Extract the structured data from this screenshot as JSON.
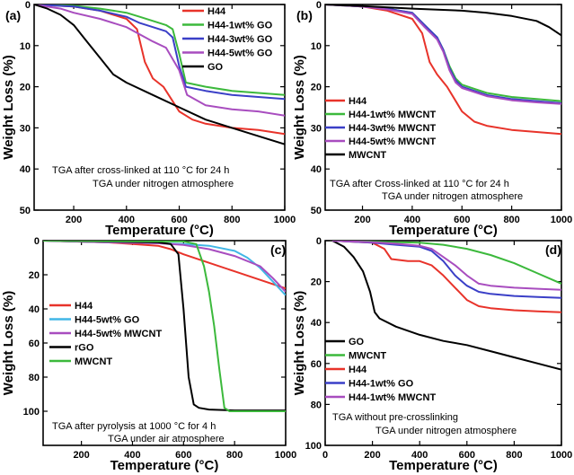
{
  "chart_data": [
    {
      "type": "line",
      "panel_label": "(a)",
      "xlabel": "Temperature (°C)",
      "ylabel": "Weight Loss (%)",
      "xlim": [
        50,
        1000
      ],
      "ylim": [
        0,
        50
      ],
      "y_inverted": true,
      "xticks": [
        200,
        400,
        600,
        800,
        1000
      ],
      "yticks": [
        0,
        10,
        20,
        30,
        40,
        50
      ],
      "legend_position": "top-right",
      "annotations": [
        "TGA after cross-linked  at 110 °C for 24 h",
        "TGA under nitrogen atmosphere"
      ],
      "series": [
        {
          "name": "H44",
          "color": "#e8332a",
          "x": [
            50,
            200,
            300,
            400,
            440,
            470,
            500,
            540,
            570,
            600,
            650,
            700,
            800,
            900,
            1000
          ],
          "y": [
            0,
            0.5,
            1.5,
            3.5,
            6,
            14,
            18,
            20,
            23,
            26,
            28,
            29,
            30,
            30.5,
            31.5
          ]
        },
        {
          "name": "H44-1wt% GO",
          "color": "#3cb93c",
          "x": [
            50,
            200,
            300,
            400,
            450,
            500,
            550,
            575,
            600,
            625,
            700,
            800,
            900,
            1000
          ],
          "y": [
            0,
            0.3,
            1,
            2,
            3,
            4,
            5,
            6,
            12,
            19,
            20,
            21,
            21.5,
            22
          ]
        },
        {
          "name": "H44-3wt% GO",
          "color": "#3a3fc7",
          "x": [
            50,
            200,
            300,
            400,
            450,
            500,
            550,
            575,
            600,
            625,
            700,
            800,
            900,
            1000
          ],
          "y": [
            0,
            0.5,
            1.5,
            3,
            4.5,
            5.5,
            6.5,
            8,
            15,
            20,
            21,
            22,
            22.5,
            23
          ]
        },
        {
          "name": "H44-5wt% GO",
          "color": "#a84dbf",
          "x": [
            50,
            150,
            200,
            300,
            400,
            500,
            550,
            600,
            630,
            700,
            800,
            900,
            1000
          ],
          "y": [
            0,
            1,
            2,
            3.5,
            5.5,
            9,
            10.5,
            16,
            22,
            24.5,
            25.5,
            26,
            27
          ]
        },
        {
          "name": "GO",
          "color": "#000000",
          "x": [
            50,
            100,
            150,
            200,
            250,
            300,
            350,
            400,
            500,
            600,
            700,
            800,
            900,
            1000
          ],
          "y": [
            0,
            1,
            2.5,
            5,
            9,
            13,
            17,
            19,
            22,
            25,
            28,
            30,
            32,
            34
          ]
        }
      ]
    },
    {
      "type": "line",
      "panel_label": "(b)",
      "xlabel": "Temperature (°C)",
      "ylabel": "Weight Loss (%)",
      "xlim": [
        50,
        1000
      ],
      "ylim": [
        0,
        50
      ],
      "y_inverted": true,
      "xticks": [
        200,
        400,
        600,
        800,
        1000
      ],
      "yticks": [
        0,
        10,
        20,
        30,
        40,
        50
      ],
      "legend_position": "middle-left",
      "annotations": [
        "TGA after Cross-linked  at 110 °C for 24 h",
        "TGA under nitrogen atmosphere"
      ],
      "series": [
        {
          "name": "H44",
          "color": "#e8332a",
          "x": [
            50,
            200,
            300,
            400,
            440,
            470,
            500,
            540,
            570,
            600,
            650,
            700,
            800,
            900,
            1000
          ],
          "y": [
            0,
            0.5,
            1.5,
            3.5,
            7,
            14,
            17,
            20,
            23,
            26,
            28.5,
            29.5,
            30.5,
            31,
            31.5
          ]
        },
        {
          "name": "H44-1wt% MWCNT",
          "color": "#3cb93c",
          "x": [
            50,
            200,
            300,
            400,
            450,
            500,
            525,
            550,
            575,
            600,
            650,
            700,
            800,
            900,
            1000
          ],
          "y": [
            0,
            0.5,
            1,
            2,
            5,
            8,
            11,
            15,
            18,
            19.5,
            20.5,
            21.5,
            22.5,
            23,
            23.5
          ]
        },
        {
          "name": "H44-3wt% MWCNT",
          "color": "#3a3fc7",
          "x": [
            50,
            200,
            300,
            400,
            450,
            500,
            525,
            550,
            575,
            600,
            650,
            700,
            800,
            900,
            1000
          ],
          "y": [
            0,
            0.5,
            1,
            2,
            5,
            8,
            11,
            15.5,
            18.5,
            20,
            21,
            22,
            23,
            23.5,
            24
          ]
        },
        {
          "name": "H44-5wt% MWCNT",
          "color": "#a84dbf",
          "x": [
            50,
            200,
            300,
            400,
            450,
            500,
            525,
            550,
            575,
            600,
            650,
            700,
            800,
            900,
            1000
          ],
          "y": [
            0,
            0.5,
            1.2,
            2.3,
            5.5,
            8.5,
            11.5,
            16,
            19,
            20.3,
            21.3,
            22.3,
            23.3,
            23.8,
            24.2
          ]
        },
        {
          "name": "MWCNT",
          "color": "#000000",
          "x": [
            50,
            200,
            400,
            600,
            700,
            800,
            900,
            950,
            1000
          ],
          "y": [
            0,
            0.4,
            1,
            1.5,
            2,
            2.8,
            4,
            5.5,
            7.5
          ]
        }
      ]
    },
    {
      "type": "line",
      "panel_label": "(c)",
      "xlabel": "Temperature (°C)",
      "ylabel": "Weight Loss (%)",
      "xlim": [
        50,
        1000
      ],
      "ylim": [
        0,
        120
      ],
      "y_inverted": true,
      "xticks": [
        200,
        400,
        600,
        800,
        1000
      ],
      "yticks": [
        0,
        20,
        40,
        60,
        80,
        100
      ],
      "legend_position": "middle-left",
      "annotations": [
        "TGA after pyrolysis  at 1000 °C for 4 h",
        "TGA under air atmosphere"
      ],
      "series": [
        {
          "name": "H44",
          "color": "#e8332a",
          "x": [
            50,
            300,
            400,
            500,
            550,
            600,
            700,
            800,
            900,
            1000
          ],
          "y": [
            0,
            1,
            2,
            3,
            5,
            8,
            13,
            18,
            23,
            28
          ]
        },
        {
          "name": "H44-5wt% GO",
          "color": "#41b6e6",
          "x": [
            50,
            300,
            500,
            600,
            700,
            800,
            850,
            900,
            950,
            1000
          ],
          "y": [
            0,
            1,
            1.5,
            2,
            3,
            6,
            10,
            16,
            24,
            32
          ]
        },
        {
          "name": "H44-5wt% MWCNT",
          "color": "#a84dbf",
          "x": [
            50,
            300,
            500,
            600,
            700,
            800,
            900,
            950,
            1000
          ],
          "y": [
            0,
            1,
            1.5,
            2.5,
            5,
            9,
            15,
            22,
            30
          ]
        },
        {
          "name": "rGO",
          "color": "#000000",
          "x": [
            50,
            300,
            500,
            550,
            580,
            600,
            620,
            640,
            660,
            700,
            800,
            1000
          ],
          "y": [
            0,
            0.5,
            1,
            2,
            8,
            40,
            80,
            96,
            98,
            99,
            99.5,
            99.5
          ]
        },
        {
          "name": "MWCNT",
          "color": "#3cb93c",
          "x": [
            50,
            300,
            600,
            650,
            680,
            700,
            720,
            740,
            760,
            780,
            1000
          ],
          "y": [
            0,
            0.3,
            0.5,
            2,
            15,
            30,
            50,
            75,
            98,
            100,
            100
          ]
        }
      ]
    },
    {
      "type": "line",
      "panel_label": "(d)",
      "xlabel": "Temperature (°C)",
      "ylabel": "Weight Loss (%)",
      "xlim": [
        0,
        1000
      ],
      "ylim": [
        0,
        100
      ],
      "y_inverted": true,
      "xticks": [
        0,
        200,
        400,
        600,
        800,
        1000
      ],
      "yticks": [
        0,
        20,
        40,
        60,
        80,
        100
      ],
      "legend_position": "middle-left",
      "annotations": [
        "TGA without pre-crosslinking",
        "TGA under nitrogen atmosphere"
      ],
      "series": [
        {
          "name": "GO",
          "color": "#000000",
          "x": [
            30,
            80,
            120,
            160,
            190,
            210,
            230,
            300,
            400,
            500,
            600,
            700,
            800,
            900,
            1000
          ],
          "y": [
            0,
            3,
            8,
            15,
            25,
            35,
            38,
            42,
            46,
            49,
            51,
            54,
            57,
            60,
            63
          ]
        },
        {
          "name": "MWCNT",
          "color": "#3cb93c",
          "x": [
            30,
            200,
            400,
            500,
            600,
            700,
            800,
            900,
            1000
          ],
          "y": [
            0,
            0.5,
            1,
            2,
            4,
            7,
            11,
            16,
            21
          ]
        },
        {
          "name": "H44",
          "color": "#e8332a",
          "x": [
            30,
            200,
            250,
            280,
            350,
            400,
            450,
            500,
            550,
            600,
            650,
            700,
            800,
            900,
            1000
          ],
          "y": [
            0,
            1,
            4,
            9,
            10,
            10,
            12,
            17,
            23,
            29,
            32,
            33,
            34,
            34.5,
            35
          ]
        },
        {
          "name": "H44-1wt% GO",
          "color": "#3a3fc7",
          "x": [
            30,
            200,
            300,
            400,
            450,
            500,
            550,
            600,
            650,
            700,
            800,
            900,
            1000
          ],
          "y": [
            0,
            1,
            2,
            3,
            5,
            10,
            17,
            22,
            25,
            26,
            27,
            27.5,
            28
          ]
        },
        {
          "name": "H44-1wt% MWCNT",
          "color": "#a84dbf",
          "x": [
            30,
            200,
            300,
            400,
            450,
            500,
            550,
            600,
            650,
            700,
            800,
            900,
            1000
          ],
          "y": [
            0,
            0.8,
            1.5,
            2.5,
            4,
            8,
            12,
            17,
            21,
            22,
            23,
            23.5,
            24
          ]
        }
      ]
    }
  ]
}
